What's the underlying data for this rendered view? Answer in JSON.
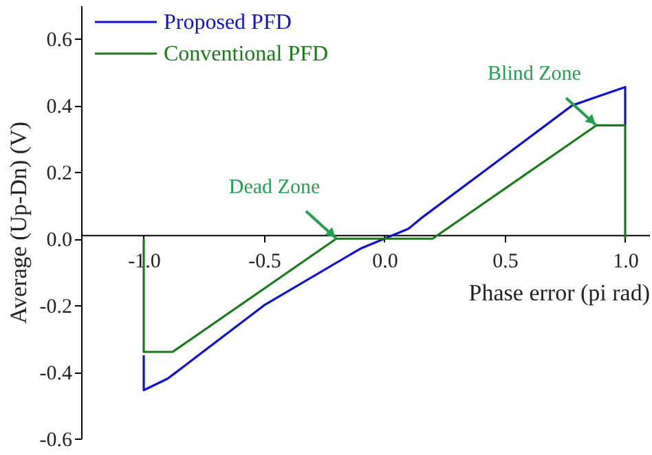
{
  "chart_data": {
    "type": "line",
    "xlabel": "Phase error (pi rad)",
    "ylabel": "Average (Up-Dn) (V)",
    "series": [
      {
        "name": "Proposed PFD",
        "color": "#1010d0",
        "x": [
          -1.0,
          -1.0,
          -0.9,
          -0.5,
          -0.1,
          0.0,
          0.1,
          0.15,
          0.78,
          0.9,
          1.0,
          1.0
        ],
        "values": [
          -0.35,
          -0.455,
          -0.42,
          -0.2,
          -0.03,
          0.0,
          0.03,
          0.06,
          0.4,
          0.43,
          0.455,
          0.34
        ]
      },
      {
        "name": "Conventional PFD",
        "color": "#1a7a1a",
        "x": [
          -1.0,
          -1.0,
          -0.88,
          -0.2,
          0.2,
          0.88,
          1.0,
          1.0
        ],
        "values": [
          0.0,
          -0.34,
          -0.34,
          0.0,
          0.0,
          0.34,
          0.34,
          0.0
        ]
      }
    ],
    "annotations": [
      {
        "text": "Dead Zone",
        "x": -0.2,
        "y": 0.0
      },
      {
        "text": "Blind Zone",
        "x": 0.88,
        "y": 0.34
      }
    ],
    "xlim": [
      -1.26,
      1.1
    ],
    "ylim": [
      -0.6,
      0.7
    ],
    "xticks": [
      {
        "value": -1.0,
        "label": "-1.0"
      },
      -0.5,
      {
        "value": 0.0,
        "label": "0.0"
      },
      0.5,
      {
        "value": 1.0,
        "label": "1.0"
      }
    ],
    "yticks": [
      -0.6,
      -0.4,
      -0.2,
      {
        "value": 0.0,
        "label": "0.0"
      },
      0.2,
      0.4,
      0.6
    ],
    "grid": false,
    "legend": "top left",
    "line_style": "solid",
    "marker": "none"
  }
}
